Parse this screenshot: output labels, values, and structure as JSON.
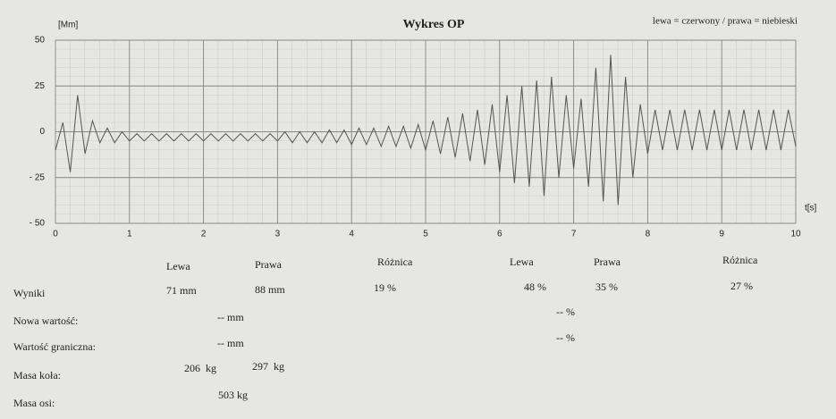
{
  "chart_data": {
    "type": "line",
    "title": "Wykres OP",
    "subtitle": "lewa = czerwony / prawa = niebieski",
    "y_label": "[Mm]",
    "x_label": "t[s]",
    "color": "#555555",
    "grid": true,
    "xlim": [
      0,
      10
    ],
    "ylim": [
      -50,
      50
    ],
    "xticks": [
      0,
      1,
      2,
      3,
      4,
      5,
      6,
      7,
      8,
      9,
      10
    ],
    "yticks": [
      50,
      25,
      0,
      {
        "value": -25,
        "label": "- 25"
      },
      {
        "value": -50,
        "label": "- 50"
      }
    ],
    "x": [
      0,
      0.1,
      0.2,
      0.3,
      0.4,
      0.5,
      0.6,
      0.7,
      0.8,
      0.9,
      1,
      1.1,
      1.2,
      1.3,
      1.4,
      1.5,
      1.6,
      1.7,
      1.8,
      1.9,
      2,
      2.1,
      2.2,
      2.3,
      2.4,
      2.5,
      2.6,
      2.7,
      2.8,
      2.9,
      3,
      3.1,
      3.2,
      3.3,
      3.4,
      3.5,
      3.6,
      3.7,
      3.8,
      3.9,
      4,
      4.1,
      4.2,
      4.3,
      4.4,
      4.5,
      4.6,
      4.7,
      4.8,
      4.9,
      5,
      5.1,
      5.2,
      5.3,
      5.4,
      5.5,
      5.6,
      5.7,
      5.8,
      5.9,
      6,
      6.1,
      6.2,
      6.3,
      6.4,
      6.5,
      6.6,
      6.7,
      6.8,
      6.9,
      7,
      7.1,
      7.2,
      7.3,
      7.4,
      7.5,
      7.6,
      7.7,
      7.8,
      7.9,
      8,
      8.1,
      8.2,
      8.3,
      8.4,
      8.5,
      8.6,
      8.7,
      8.8,
      8.9,
      9,
      9.1,
      9.2,
      9.3,
      9.4,
      9.5,
      9.6,
      9.7,
      9.8,
      9.9,
      10
    ],
    "values": [
      -10,
      5,
      -22,
      20,
      -12,
      6,
      -6,
      2,
      -6,
      0,
      -5,
      -1,
      -5,
      -1,
      -5,
      -1,
      -5,
      -1,
      -5,
      -1,
      -5,
      -1,
      -5,
      -1,
      -5,
      -1,
      -5,
      -1,
      -5,
      -1,
      -5,
      0,
      -6,
      0,
      -6,
      0,
      -6,
      1,
      -6,
      1,
      -7,
      2,
      -7,
      2,
      -8,
      3,
      -8,
      3,
      -9,
      4,
      -10,
      6,
      -12,
      8,
      -14,
      10,
      -16,
      12,
      -18,
      15,
      -22,
      20,
      -28,
      25,
      -30,
      28,
      -35,
      30,
      -25,
      20,
      -20,
      18,
      -30,
      35,
      -38,
      42,
      -40,
      30,
      -25,
      15,
      -12,
      12,
      -10,
      12,
      -10,
      12,
      -10,
      12,
      -10,
      12,
      -10,
      12,
      -10,
      12,
      -10,
      12,
      -10,
      12,
      -10,
      12,
      -8
    ]
  },
  "results": {
    "headers": [
      "Lewa",
      "Prawa",
      "Różnica",
      "Lewa",
      "Prawa",
      "Różnica"
    ],
    "rows": [
      {
        "label": "Wyniki",
        "cells": [
          "71 mm",
          "88 mm",
          "19 %",
          "48 %",
          "35 %",
          "27 %"
        ]
      },
      {
        "label": "Nowa wartość:",
        "cells": [
          "-- mm",
          "-- %"
        ]
      },
      {
        "label": "Wartość graniczna:",
        "cells": [
          "-- mm",
          "-- %"
        ]
      },
      {
        "label": "Masa koła:",
        "cells": [
          "206  kg",
          "297  kg"
        ]
      },
      {
        "label": "Masa osi:",
        "cells": [
          "503 kg"
        ]
      }
    ]
  }
}
